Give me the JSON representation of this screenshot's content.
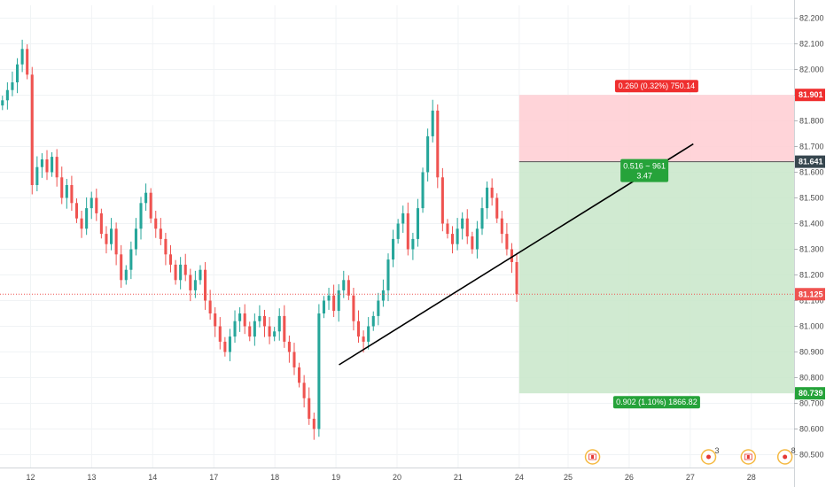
{
  "chart_data": {
    "type": "candlestick",
    "symbol_hint": "",
    "y_axis": {
      "min": 80.45,
      "max": 82.25,
      "ticks": [
        80.5,
        80.6,
        80.7,
        80.8,
        80.9,
        81.0,
        81.1,
        81.2,
        81.3,
        81.4,
        81.5,
        81.6,
        81.7,
        81.8,
        81.9,
        82.0,
        82.1,
        82.2
      ],
      "tick_labels": [
        "80.500",
        "80.600",
        "80.700",
        "80.800",
        "80.900",
        "81.000",
        "81.100",
        "81.200",
        "81.300",
        "81.400",
        "81.500",
        "81.600",
        "81.700",
        "81.800",
        "81.900",
        "82.000",
        "82.100",
        "82.200"
      ]
    },
    "x_axis": {
      "labels": [
        "12",
        "13",
        "14",
        "17",
        "18",
        "19",
        "20",
        "21",
        "24",
        "25",
        "26",
        "27",
        "28"
      ],
      "label_positions": [
        0.5,
        1.5,
        2.5,
        3.5,
        4.5,
        5.5,
        6.5,
        7.5,
        8.5,
        9.3,
        10.3,
        11.3,
        12.3
      ],
      "range": [
        0,
        13
      ]
    },
    "colors": {
      "up": "#26a69a",
      "down": "#ef5350",
      "profit_zone": "#c8e6c9",
      "loss_zone": "#ffcdd2",
      "profit_label": "#26a33a",
      "loss_label": "#ef2f2f",
      "current_price": "#ef5350",
      "grid": "#f0f3f5",
      "trendline": "#000000"
    },
    "price_tags": {
      "target": "81.901",
      "entry": "81.641",
      "current": "81.125",
      "stop": "80.739"
    },
    "price_levels": {
      "target": 81.901,
      "entry": 81.641,
      "current": 81.125,
      "stop": 80.739
    },
    "position_tool": {
      "start_x": 8.5,
      "end_x": 13.0,
      "upper_label": "0.260 (0.32%) 750.14",
      "lower_label": "0.902 (1.10%) 1866.82",
      "center_line1": "0.516 ~ 961",
      "center_line2": "3.47"
    },
    "trendline": {
      "x1": 5.55,
      "y1": 80.85,
      "x2": 11.35,
      "y2": 81.71
    },
    "close_series": [
      81.88,
      81.92,
      81.95,
      82.02,
      82.08,
      81.98,
      81.55,
      81.62,
      81.65,
      81.6,
      81.66,
      81.58,
      81.5,
      81.55,
      81.48,
      81.42,
      81.38,
      81.46,
      81.5,
      81.44,
      81.36,
      81.32,
      81.38,
      81.28,
      81.18,
      81.22,
      81.3,
      81.38,
      81.48,
      81.52,
      81.42,
      81.38,
      81.34,
      81.28,
      81.24,
      81.18,
      81.24,
      81.2,
      81.14,
      81.18,
      81.22,
      81.1,
      81.05,
      81.0,
      80.94,
      80.9,
      80.96,
      81.02,
      81.05,
      81.0,
      80.96,
      81.02,
      81.04,
      81.0,
      80.96,
      80.98,
      81.04,
      80.94,
      80.9,
      80.84,
      80.78,
      80.72,
      80.64,
      80.6,
      81.05,
      81.1,
      81.12,
      81.06,
      81.14,
      81.18,
      81.12,
      81.02,
      80.96,
      80.94,
      81.0,
      81.04,
      81.1,
      81.14,
      81.26,
      81.34,
      81.4,
      81.44,
      81.3,
      81.34,
      81.46,
      81.6,
      81.74,
      81.84,
      81.58,
      81.4,
      81.36,
      81.32,
      81.38,
      81.42,
      81.35,
      81.3,
      81.38,
      81.46,
      81.54,
      81.5,
      81.42,
      81.36,
      81.3,
      81.25,
      81.125
    ],
    "x_start": 0.0,
    "x_end": 8.5,
    "markers": [
      {
        "icon": "flag-event-icon",
        "x": 9.7
      },
      {
        "icon": "event-badge-icon",
        "x": 11.6,
        "badge": "3"
      },
      {
        "icon": "flag-event-icon",
        "x": 12.25
      },
      {
        "icon": "event-badge-icon",
        "x": 12.85,
        "badge": "8"
      }
    ]
  }
}
